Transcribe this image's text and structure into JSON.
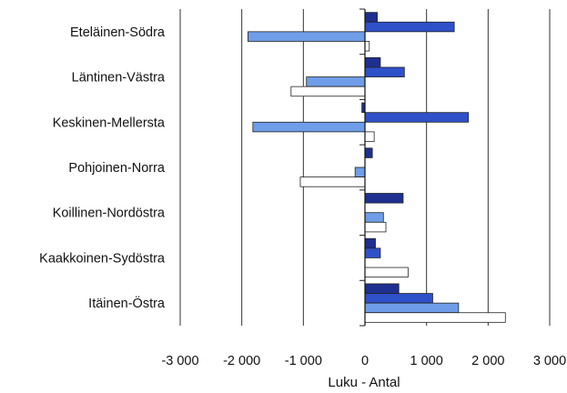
{
  "chart_data": {
    "type": "bar",
    "orientation": "horizontal",
    "categories": [
      "Eteläinen-Södra",
      "Läntinen-Västra",
      "Keskinen-Mellersta",
      "Pohjoinen-Norra",
      "Koillinen-Nordöstra",
      "Kaakkoinen-Sydöstra",
      "Itäinen-Östra"
    ],
    "series": [
      {
        "color": "#1f2f8f",
        "values": [
          200,
          250,
          -50,
          120,
          620,
          170,
          550
        ]
      },
      {
        "color": "#2e50c8",
        "values": [
          1450,
          640,
          1680,
          0,
          0,
          250,
          1100
        ]
      },
      {
        "color": "#6f9de8",
        "values": [
          -1900,
          -950,
          -1820,
          -160,
          300,
          0,
          1520
        ]
      },
      {
        "color": "#ffffff",
        "values": [
          70,
          -1200,
          150,
          -1050,
          340,
          700,
          2280
        ]
      }
    ],
    "xlim": [
      -3000,
      3000
    ],
    "xticks": [
      -3000,
      -2000,
      -1000,
      0,
      1000,
      2000,
      3000
    ],
    "xtick_labels": [
      "-3 000",
      "-2 000",
      "-1 000",
      "0",
      "1 000",
      "2 000",
      "3 000"
    ],
    "xlabel": "Luku - Antal",
    "grid": true
  }
}
